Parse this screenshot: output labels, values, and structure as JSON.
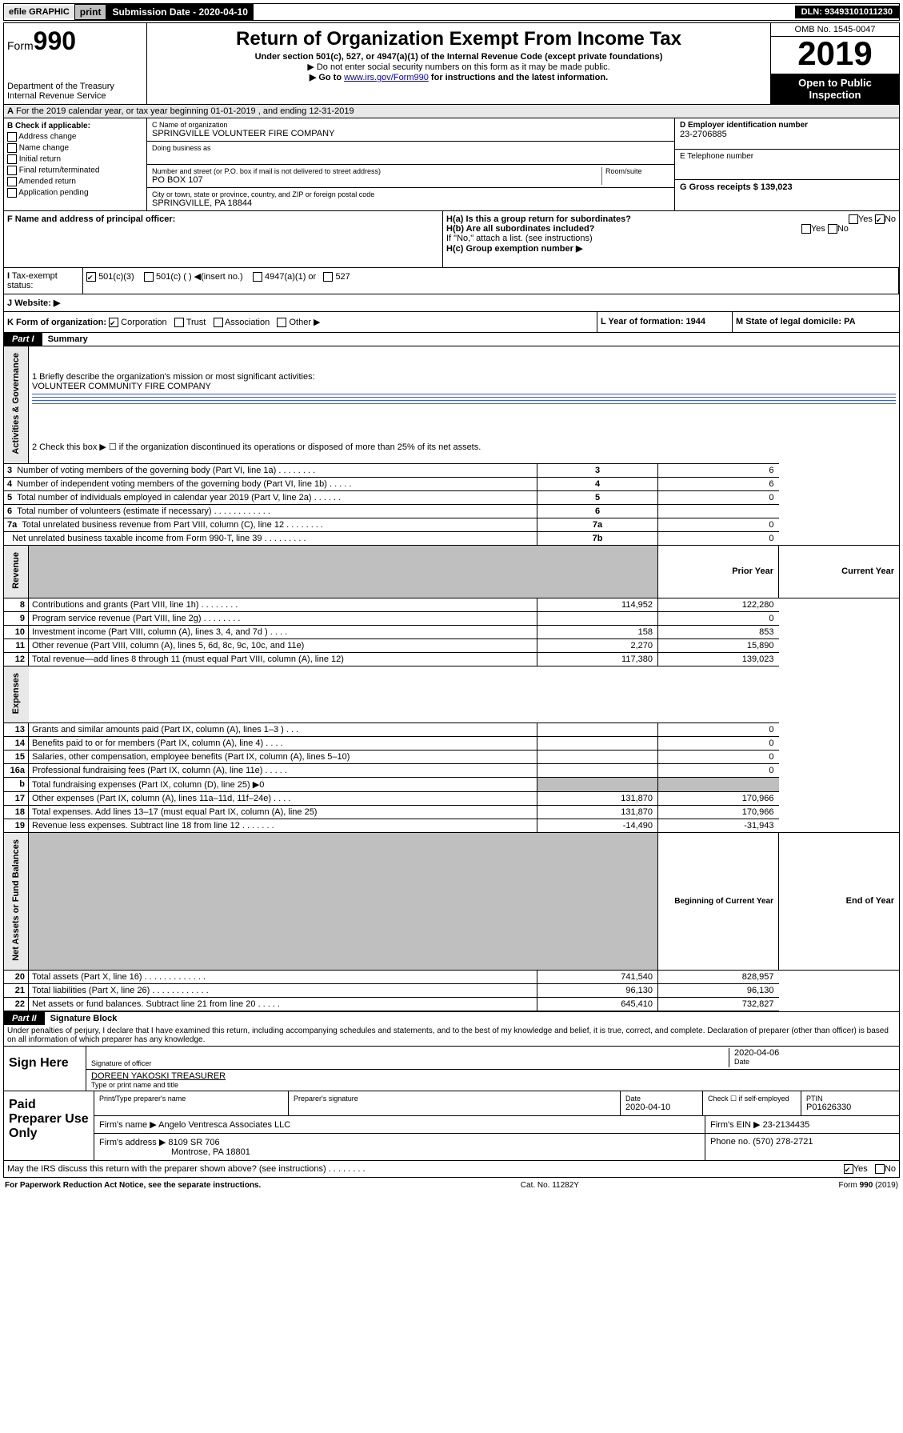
{
  "topbar": {
    "efile": "efile GRAPHIC",
    "print": "print",
    "sub_label": "Submission Date - 2020-04-10",
    "dln": "DLN: 93493101011230"
  },
  "header": {
    "form_prefix": "Form",
    "form_num": "990",
    "dept": "Department of the Treasury\nInternal Revenue Service",
    "title": "Return of Organization Exempt From Income Tax",
    "sub1": "Under section 501(c), 527, or 4947(a)(1) of the Internal Revenue Code (except private foundations)",
    "sub2": "▶ Do not enter social security numbers on this form as it may be made public.",
    "sub3_pre": "▶ Go to ",
    "sub3_link": "www.irs.gov/Form990",
    "sub3_post": " for instructions and the latest information.",
    "omb": "OMB No. 1545-0047",
    "year": "2019",
    "open": "Open to Public Inspection"
  },
  "period": "For the 2019 calendar year, or tax year beginning 01-01-2019    , and ending 12-31-2019",
  "boxB": {
    "label": "B Check if applicable:",
    "opts": [
      "Address change",
      "Name change",
      "Initial return",
      "Final return/terminated",
      "Amended return",
      "Application pending"
    ]
  },
  "boxC": {
    "name_label": "C Name of organization",
    "name": "SPRINGVILLE VOLUNTEER FIRE COMPANY",
    "dba_label": "Doing business as",
    "addr_label": "Number and street (or P.O. box if mail is not delivered to street address)",
    "room_label": "Room/suite",
    "addr": "PO BOX 107",
    "city_label": "City or town, state or province, country, and ZIP or foreign postal code",
    "city": "SPRINGVILLE, PA  18844"
  },
  "boxD": {
    "label": "D Employer identification number",
    "ein": "23-2706885",
    "tel_label": "E Telephone number",
    "gross_label": "G Gross receipts $",
    "gross": "139,023"
  },
  "boxF": {
    "label": "F Name and address of principal officer:"
  },
  "boxH": {
    "a": "H(a)  Is this a group return for subordinates?",
    "b": "H(b)  Are all subordinates included?",
    "b2": "If \"No,\" attach a list. (see instructions)",
    "c": "H(c)  Group exemption number ▶",
    "no_checked": true
  },
  "taxexempt": {
    "I": "Tax-exempt status:",
    "opts": [
      "501(c)(3)",
      "501(c) (  ) ◀(insert no.)",
      "4947(a)(1) or",
      "527"
    ],
    "J": "Website: ▶"
  },
  "rowK": {
    "K": "K Form of organization:",
    "opts": [
      "Corporation",
      "Trust",
      "Association",
      "Other ▶"
    ],
    "L": "L Year of formation: 1944",
    "M": "M State of legal domicile: PA"
  },
  "part1": {
    "label": "Part I",
    "title": "Summary",
    "mission_q": "1   Briefly describe the organization's mission or most significant activities:",
    "mission": "VOLUNTEER COMMUNITY FIRE COMPANY",
    "line2": "2   Check this box ▶ ☐  if the organization discontinued its operations or disposed of more than 25% of its net assets.",
    "tab_gov": "Activities & Governance",
    "tab_rev": "Revenue",
    "tab_exp": "Expenses",
    "tab_net": "Net Assets or Fund Balances",
    "hdr_prior": "Prior Year",
    "hdr_curr": "Current Year",
    "hdr_beg": "Beginning of Current Year",
    "hdr_end": "End of Year",
    "rows_gov": [
      {
        "n": "3",
        "d": "Number of voting members of the governing body (Part VI, line 1a)   .    .    .    .    .    .    .    .",
        "c": "3",
        "v": "6"
      },
      {
        "n": "4",
        "d": "Number of independent voting members of the governing body (Part VI, line 1b)   .    .    .    .    .",
        "c": "4",
        "v": "6"
      },
      {
        "n": "5",
        "d": "Total number of individuals employed in calendar year 2019 (Part V, line 2a)   .    .    .    .    .    .",
        "c": "5",
        "v": "0"
      },
      {
        "n": "6",
        "d": "Total number of volunteers (estimate if necessary)   .    .    .    .    .    .    .    .    .    .    .    .",
        "c": "6",
        "v": ""
      },
      {
        "n": "7a",
        "d": "Total unrelated business revenue from Part VIII, column (C), line 12   .    .    .    .    .    .    .    .",
        "c": "7a",
        "v": "0"
      },
      {
        "n": "",
        "d": "Net unrelated business taxable income from Form 990-T, line 39   .    .    .    .    .    .    .    .    .",
        "c": "7b",
        "v": "0"
      }
    ],
    "rows_rev": [
      {
        "n": "8",
        "d": "Contributions and grants (Part VIII, line 1h)   .    .    .    .    .    .    .    .",
        "p": "114,952",
        "c": "122,280"
      },
      {
        "n": "9",
        "d": "Program service revenue (Part VIII, line 2g)   .    .    .    .    .    .    .    .",
        "p": "",
        "c": "0"
      },
      {
        "n": "10",
        "d": "Investment income (Part VIII, column (A), lines 3, 4, and 7d )   .    .    .    .",
        "p": "158",
        "c": "853"
      },
      {
        "n": "11",
        "d": "Other revenue (Part VIII, column (A), lines 5, 6d, 8c, 9c, 10c, and 11e)",
        "p": "2,270",
        "c": "15,890"
      },
      {
        "n": "12",
        "d": "Total revenue—add lines 8 through 11 (must equal Part VIII, column (A), line 12)",
        "p": "117,380",
        "c": "139,023"
      }
    ],
    "rows_exp": [
      {
        "n": "13",
        "d": "Grants and similar amounts paid (Part IX, column (A), lines 1–3 )   .    .    .",
        "p": "",
        "c": "0"
      },
      {
        "n": "14",
        "d": "Benefits paid to or for members (Part IX, column (A), line 4)   .    .    .    .",
        "p": "",
        "c": "0"
      },
      {
        "n": "15",
        "d": "Salaries, other compensation, employee benefits (Part IX, column (A), lines 5–10)",
        "p": "",
        "c": "0"
      },
      {
        "n": "16a",
        "d": "Professional fundraising fees (Part IX, column (A), line 11e)   .    .    .    .    .",
        "p": "",
        "c": "0"
      },
      {
        "n": "b",
        "d": "Total fundraising expenses (Part IX, column (D), line 25) ▶0",
        "p": "GREY",
        "c": "GREY"
      },
      {
        "n": "17",
        "d": "Other expenses (Part IX, column (A), lines 11a–11d, 11f–24e)   .    .    .    .",
        "p": "131,870",
        "c": "170,966"
      },
      {
        "n": "18",
        "d": "Total expenses. Add lines 13–17 (must equal Part IX, column (A), line 25)",
        "p": "131,870",
        "c": "170,966"
      },
      {
        "n": "19",
        "d": "Revenue less expenses. Subtract line 18 from line 12   .    .    .    .    .    .    .",
        "p": "-14,490",
        "c": "-31,943"
      }
    ],
    "rows_net": [
      {
        "n": "20",
        "d": "Total assets (Part X, line 16)   .    .    .    .    .    .    .    .    .    .    .    .    .",
        "p": "741,540",
        "c": "828,957"
      },
      {
        "n": "21",
        "d": "Total liabilities (Part X, line 26)   .    .    .    .    .    .    .    .    .    .    .    .",
        "p": "96,130",
        "c": "96,130"
      },
      {
        "n": "22",
        "d": "Net assets or fund balances. Subtract line 21 from line 20   .    .    .    .    .",
        "p": "645,410",
        "c": "732,827"
      }
    ]
  },
  "part2": {
    "label": "Part II",
    "title": "Signature Block",
    "decl": "Under penalties of perjury, I declare that I have examined this return, including accompanying schedules and statements, and to the best of my knowledge and belief, it is true, correct, and complete. Declaration of preparer (other than officer) is based on all information of which preparer has any knowledge.",
    "sign_here": "Sign Here",
    "sig_officer": "Signature of officer",
    "date": "2020-04-06",
    "date_lbl": "Date",
    "typed": "DOREEN YAKOSKI TREASURER",
    "typed_lbl": "Type or print name and title",
    "paid": "Paid Preparer Use Only",
    "pp_name_lbl": "Print/Type preparer's name",
    "pp_sig_lbl": "Preparer's signature",
    "pp_date_lbl": "Date",
    "pp_date": "2020-04-10",
    "pp_self": "Check ☐ if self-employed",
    "ptin_lbl": "PTIN",
    "ptin": "P01626330",
    "firm_name_lbl": "Firm's name    ▶",
    "firm_name": "Angelo Ventresca Associates LLC",
    "firm_ein_lbl": "Firm's EIN ▶",
    "firm_ein": "23-2134435",
    "firm_addr_lbl": "Firm's address ▶",
    "firm_addr1": "8109 SR 706",
    "firm_addr2": "Montrose, PA  18801",
    "phone_lbl": "Phone no.",
    "phone": "(570) 278-2721",
    "discuss": "May the IRS discuss this return with the preparer shown above? (see instructions)   .    .    .    .    .    .    .    .",
    "yes_checked": true
  },
  "footer": {
    "pra": "For Paperwork Reduction Act Notice, see the separate instructions.",
    "cat": "Cat. No. 11282Y",
    "form": "Form 990 (2019)"
  }
}
